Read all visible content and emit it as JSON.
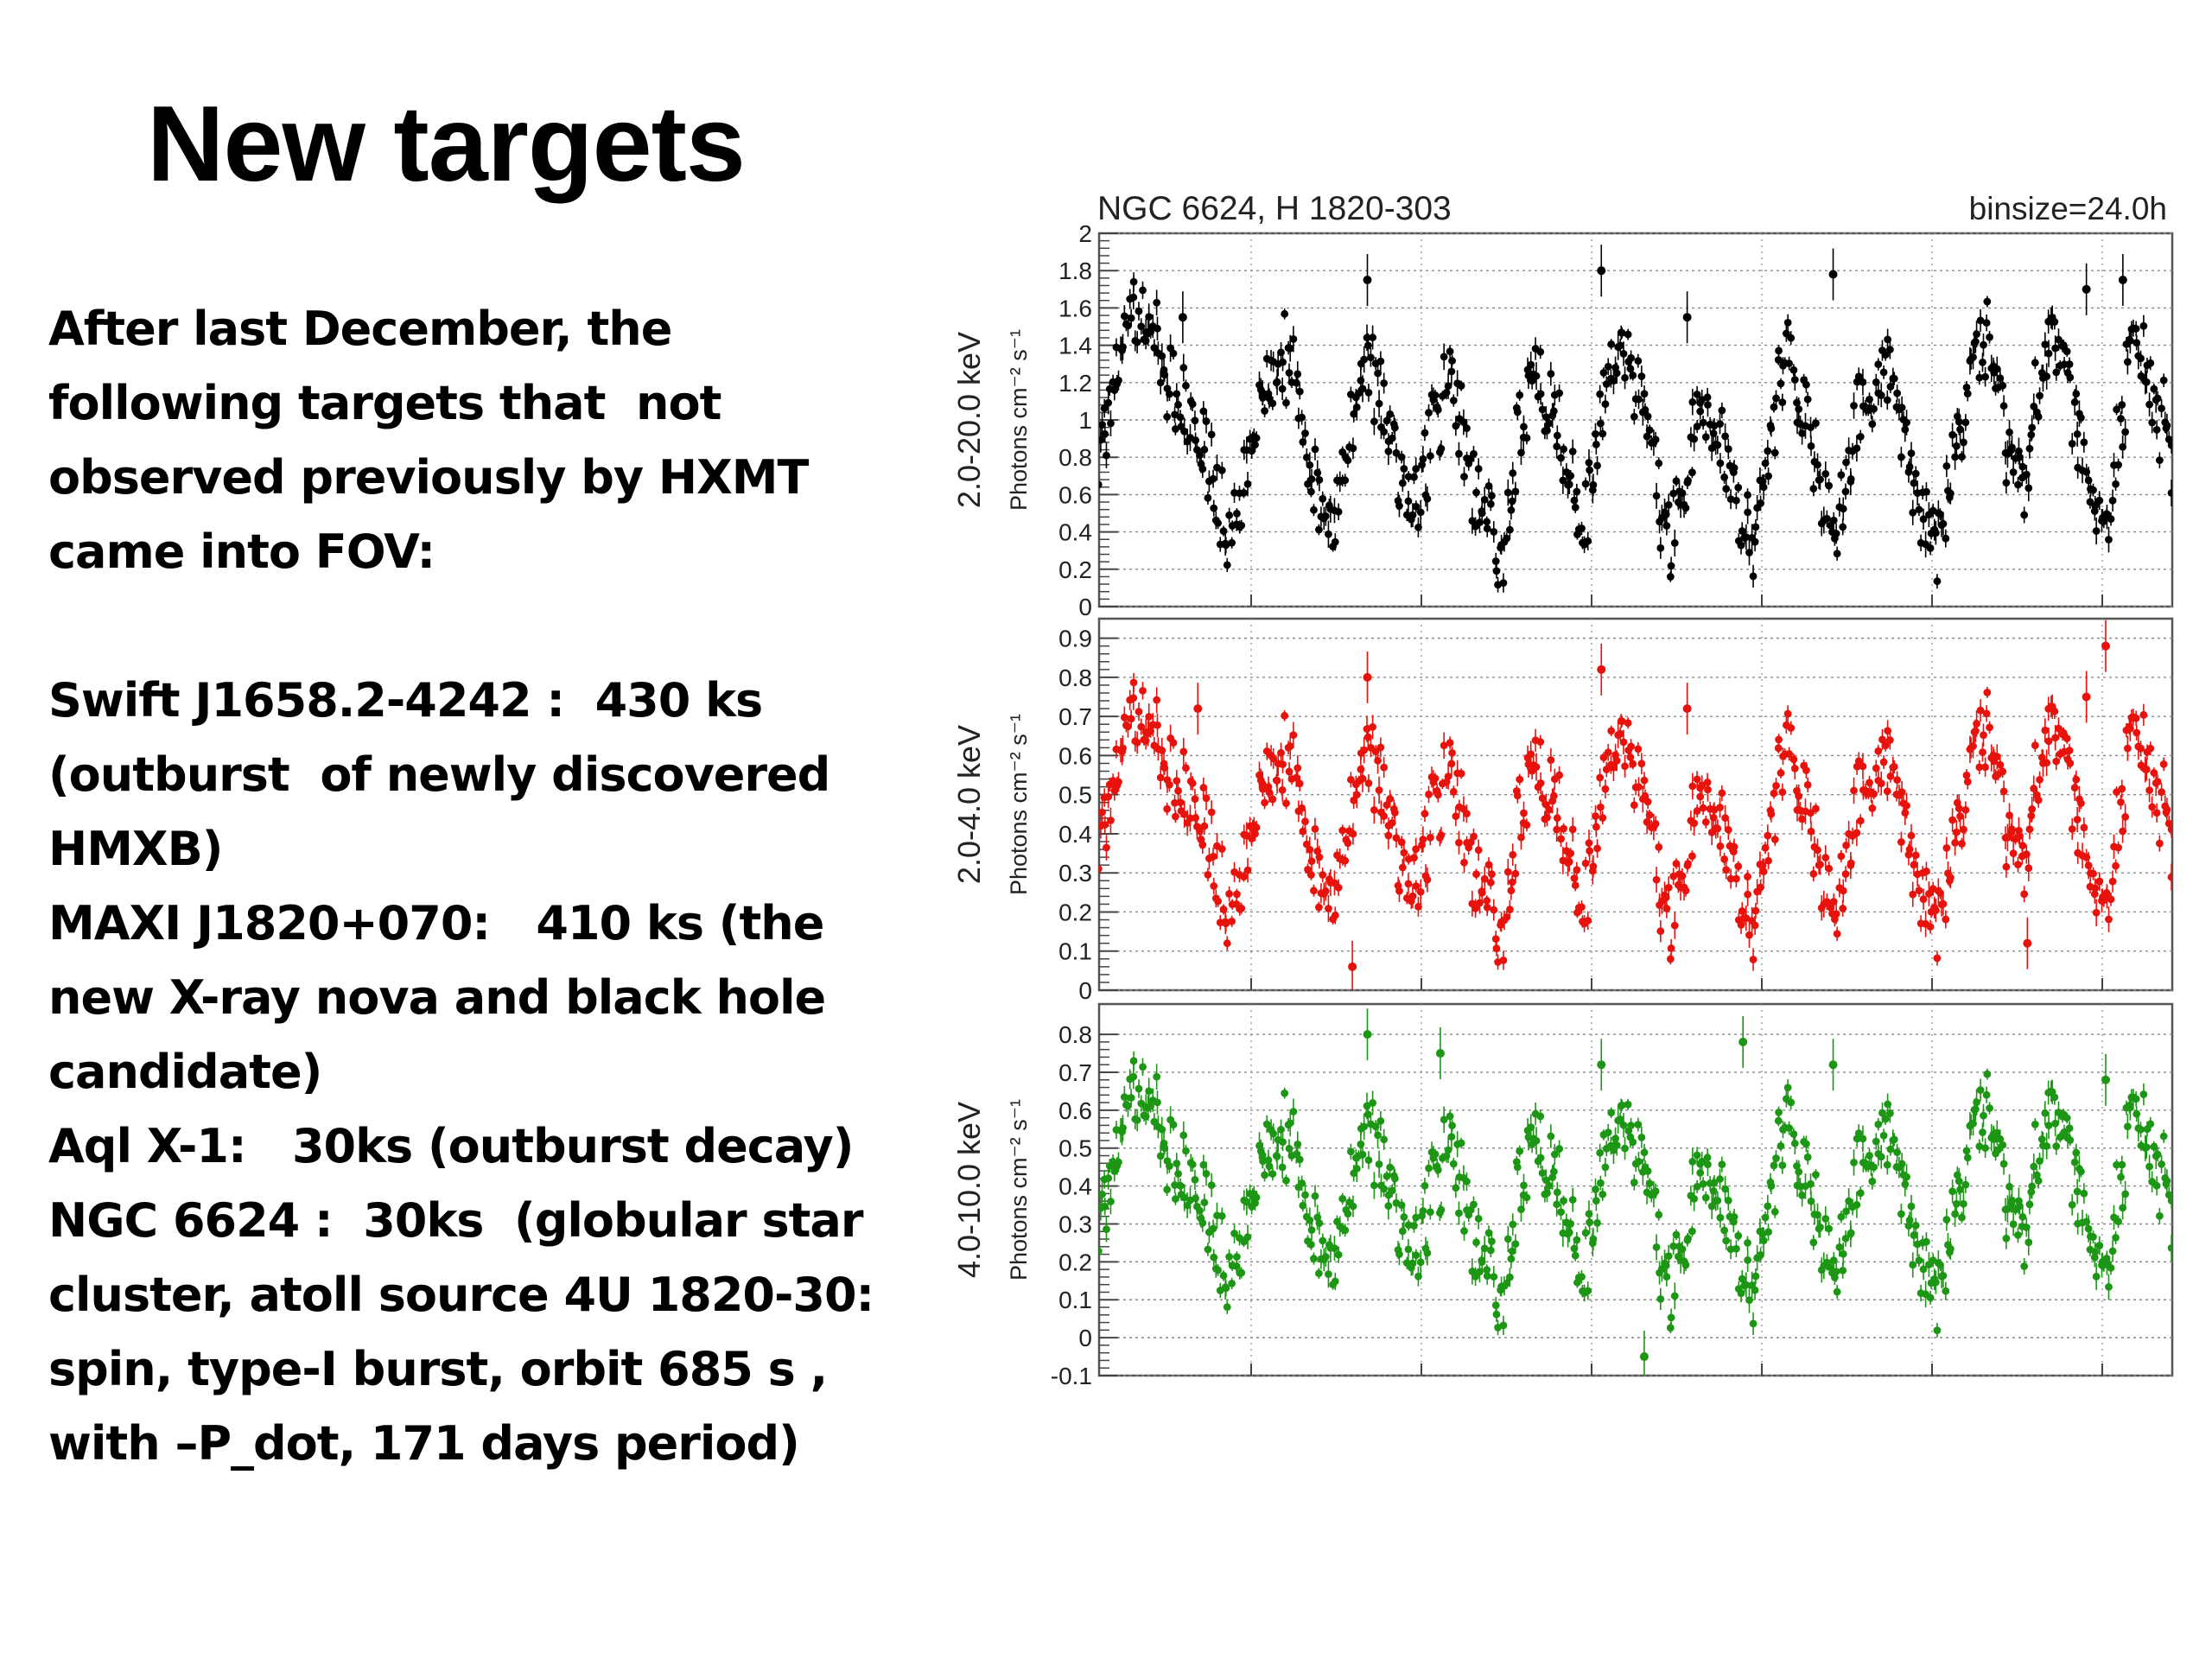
{
  "slide": {
    "title": "New targets",
    "lines": [
      "After last December, the",
      "following targets that  not",
      "observed previously by HXMT",
      "came into FOV:",
      "",
      "Swift J1658.2-4242 :  430 ks",
      "(outburst  of newly discovered",
      "HMXB)",
      "MAXI J1820+070:   410 ks (the",
      "new X-ray nova and black hole",
      "candidate)",
      "Aql X-1:   30ks (outburst decay)",
      "NGC 6624 :  30ks  (globular star",
      "cluster, atoll source 4U 1820-30:",
      "spin, type-I burst, orbit 685 s ,",
      "with –P_dot, 171 days period)"
    ]
  },
  "chart_data": {
    "type": "scatter",
    "title": "NGC 6624, H 1820-303",
    "annotation": "binsize=24.0h",
    "grid": true,
    "panels": [
      {
        "name": "2.0-20.0 keV",
        "ylabel_band": "2.0-20.0 keV",
        "ylabel_unit": "Photons cm⁻² s⁻¹",
        "color": "#000000",
        "ylim": [
          0,
          2
        ],
        "ticks": [
          "0",
          "0.2",
          "0.4",
          "0.6",
          "0.8",
          "1",
          "1.2",
          "1.4",
          "1.6",
          "1.8",
          "2"
        ],
        "tick_values": [
          0,
          0.2,
          0.4,
          0.6,
          0.8,
          1,
          1.2,
          1.4,
          1.6,
          1.8,
          2
        ],
        "envelope": [
          0.8,
          1.25,
          1.6,
          1.45,
          1.2,
          1.05,
          0.9,
          0.6,
          0.35,
          0.9,
          1.2,
          1.4,
          1.05,
          0.6,
          0.4,
          0.95,
          1.3,
          1.05,
          0.7,
          0.5,
          1.0,
          1.2,
          0.8,
          0.5,
          0.3,
          0.9,
          1.3,
          1.1,
          0.7,
          0.5,
          1.05,
          1.45,
          1.2,
          0.8,
          0.35,
          0.75,
          1.1,
          0.9,
          0.6,
          0.25,
          0.95,
          1.3,
          1.1,
          0.7,
          0.4,
          0.95,
          1.15,
          1.3,
          0.9,
          0.55,
          0.3,
          0.85,
          1.2,
          1.4,
          0.95,
          0.6,
          1.15,
          1.5,
          1.1,
          0.7,
          0.35,
          1.05,
          1.4,
          1.15,
          0.8
        ],
        "outliers": [
          [
            0.078,
            1.55
          ],
          [
            0.25,
            1.75
          ],
          [
            0.468,
            1.8
          ],
          [
            0.548,
            1.55
          ],
          [
            0.684,
            1.78
          ],
          [
            0.92,
            1.7
          ],
          [
            0.954,
            1.75
          ]
        ]
      },
      {
        "name": "2.0-4.0 keV",
        "ylabel_band": "2.0-4.0 keV",
        "ylabel_unit": "Photons cm⁻² s⁻¹",
        "color": "#e8120c",
        "ylim": [
          0,
          0.95
        ],
        "ticks": [
          "0",
          "0.1",
          "0.2",
          "0.3",
          "0.4",
          "0.5",
          "0.6",
          "0.7",
          "0.8",
          "0.9"
        ],
        "tick_values": [
          0,
          0.1,
          0.2,
          0.3,
          0.4,
          0.5,
          0.6,
          0.7,
          0.8,
          0.9
        ],
        "envelope": [
          0.38,
          0.55,
          0.72,
          0.65,
          0.55,
          0.5,
          0.45,
          0.3,
          0.18,
          0.42,
          0.55,
          0.62,
          0.48,
          0.3,
          0.22,
          0.45,
          0.6,
          0.5,
          0.33,
          0.25,
          0.48,
          0.55,
          0.38,
          0.25,
          0.16,
          0.43,
          0.6,
          0.52,
          0.35,
          0.25,
          0.5,
          0.68,
          0.56,
          0.38,
          0.17,
          0.36,
          0.52,
          0.43,
          0.3,
          0.12,
          0.45,
          0.6,
          0.52,
          0.33,
          0.2,
          0.45,
          0.55,
          0.6,
          0.43,
          0.27,
          0.16,
          0.4,
          0.56,
          0.65,
          0.45,
          0.3,
          0.55,
          0.7,
          0.52,
          0.33,
          0.18,
          0.5,
          0.65,
          0.55,
          0.38
        ],
        "outliers": [
          [
            0.092,
            0.72
          ],
          [
            0.236,
            0.06
          ],
          [
            0.25,
            0.8
          ],
          [
            0.468,
            0.82
          ],
          [
            0.548,
            0.72
          ],
          [
            0.865,
            0.12
          ],
          [
            0.92,
            0.75
          ],
          [
            0.938,
            0.88
          ]
        ]
      },
      {
        "name": "4.0-10.0 keV",
        "ylabel_band": "4.0-10.0 keV",
        "ylabel_unit": "Photons cm⁻² s⁻¹",
        "color": "#1c9614",
        "ylim": [
          -0.1,
          0.88
        ],
        "ticks": [
          "-0.1",
          "0",
          "0.1",
          "0.2",
          "0.3",
          "0.4",
          "0.5",
          "0.6",
          "0.7",
          "0.8"
        ],
        "tick_values": [
          -0.1,
          0,
          0.1,
          0.2,
          0.3,
          0.4,
          0.5,
          0.6,
          0.7,
          0.8
        ],
        "envelope": [
          0.3,
          0.48,
          0.66,
          0.6,
          0.48,
          0.42,
          0.38,
          0.25,
          0.15,
          0.38,
          0.5,
          0.56,
          0.42,
          0.26,
          0.18,
          0.4,
          0.54,
          0.45,
          0.3,
          0.2,
          0.42,
          0.5,
          0.34,
          0.2,
          0.12,
          0.38,
          0.55,
          0.46,
          0.3,
          0.2,
          0.44,
          0.6,
          0.5,
          0.34,
          0.12,
          0.3,
          0.46,
          0.38,
          0.25,
          0.08,
          0.4,
          0.55,
          0.46,
          0.3,
          0.18,
          0.4,
          0.5,
          0.55,
          0.38,
          0.22,
          0.1,
          0.35,
          0.5,
          0.58,
          0.4,
          0.25,
          0.48,
          0.62,
          0.46,
          0.3,
          0.14,
          0.44,
          0.58,
          0.5,
          0.33
        ],
        "outliers": [
          [
            0.25,
            0.8
          ],
          [
            0.318,
            0.75
          ],
          [
            0.468,
            0.72
          ],
          [
            0.508,
            -0.05
          ],
          [
            0.6,
            0.78
          ],
          [
            0.684,
            0.72
          ],
          [
            0.938,
            0.68
          ]
        ]
      }
    ]
  }
}
